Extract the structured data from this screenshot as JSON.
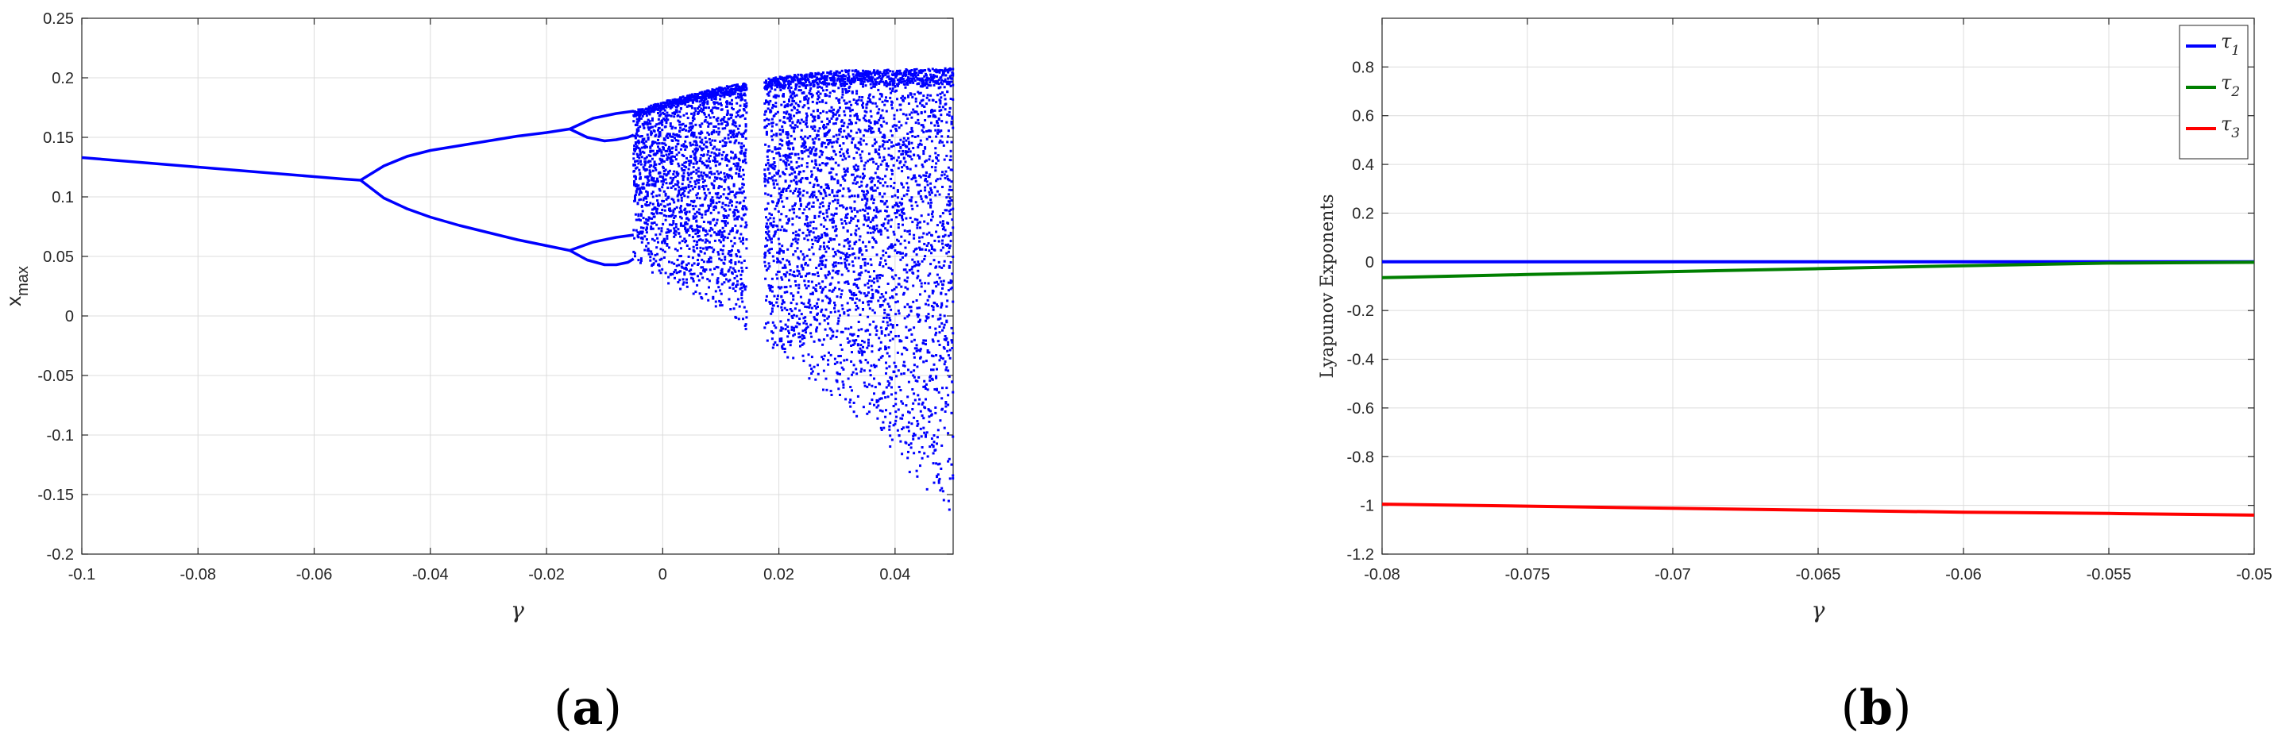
{
  "panels": [
    {
      "label_open": "(",
      "label_letter": "a",
      "label_close": ")"
    },
    {
      "label_open": "(",
      "label_letter": "b",
      "label_close": ")"
    }
  ],
  "chart_data": [
    {
      "type": "scatter",
      "xlabel": "γ",
      "ylabel_main": "x",
      "ylabel_sub": "max",
      "xlim": [
        -0.1,
        0.05
      ],
      "ylim": [
        -0.2,
        0.25
      ],
      "xticks": [
        -0.1,
        -0.08,
        -0.06,
        -0.04,
        -0.02,
        0,
        0.02,
        0.04
      ],
      "yticks": [
        -0.2,
        -0.15,
        -0.1,
        -0.05,
        0,
        0.05,
        0.1,
        0.15,
        0.2,
        0.25
      ],
      "xtick_labels": [
        "-0.1",
        "-0.08",
        "-0.06",
        "-0.04",
        "-0.02",
        "0",
        "0.02",
        "0.04"
      ],
      "ytick_labels": [
        "-0.2",
        "-0.15",
        "-0.1",
        "-0.05",
        "0",
        "0.05",
        "0.1",
        "0.15",
        "0.2",
        "0.25"
      ],
      "grid": true,
      "color": "#0000ff",
      "series": [
        {
          "x": [
            -0.1,
            -0.09,
            -0.08,
            -0.07,
            -0.06,
            -0.055,
            -0.052
          ],
          "values": [
            0.133,
            0.129,
            0.125,
            0.121,
            0.117,
            0.115,
            0.114
          ]
        },
        {
          "x": [
            -0.052,
            -0.048,
            -0.044,
            -0.04,
            -0.035,
            -0.03,
            -0.025,
            -0.02,
            -0.016
          ],
          "values": [
            0.114,
            0.126,
            0.134,
            0.139,
            0.143,
            0.147,
            0.151,
            0.154,
            0.157
          ]
        },
        {
          "x": [
            -0.052,
            -0.048,
            -0.044,
            -0.04,
            -0.035,
            -0.03,
            -0.025,
            -0.02,
            -0.016
          ],
          "values": [
            0.114,
            0.099,
            0.09,
            0.083,
            0.076,
            0.07,
            0.064,
            0.059,
            0.055
          ]
        },
        {
          "x": [
            -0.016,
            -0.012,
            -0.008,
            -0.005
          ],
          "values": [
            0.157,
            0.166,
            0.17,
            0.172
          ]
        },
        {
          "x": [
            -0.016,
            -0.013,
            -0.01,
            -0.008,
            -0.006,
            -0.005
          ],
          "values": [
            0.157,
            0.15,
            0.147,
            0.148,
            0.15,
            0.152
          ]
        },
        {
          "x": [
            -0.016,
            -0.012,
            -0.008,
            -0.005
          ],
          "values": [
            0.055,
            0.062,
            0.066,
            0.068
          ]
        },
        {
          "x": [
            -0.016,
            -0.013,
            -0.01,
            -0.008,
            -0.006,
            -0.005
          ],
          "values": [
            0.055,
            0.047,
            0.043,
            0.043,
            0.045,
            0.048
          ]
        }
      ],
      "chaos_band": {
        "x": [
          -0.005,
          0.0,
          0.01,
          0.02,
          0.03,
          0.04,
          0.05
        ],
        "upper": [
          0.172,
          0.18,
          0.192,
          0.201,
          0.206,
          0.207,
          0.208
        ],
        "lower": [
          0.048,
          0.03,
          0.002,
          -0.03,
          -0.075,
          -0.12,
          -0.168
        ]
      },
      "periodic_window": {
        "x_range": [
          0.0145,
          0.0175
        ]
      }
    },
    {
      "type": "line",
      "xlabel": "γ",
      "ylabel": "Lyapunov Exponents",
      "xlim": [
        -0.08,
        -0.05
      ],
      "ylim": [
        -1.2,
        1.0
      ],
      "xticks": [
        -0.08,
        -0.075,
        -0.07,
        -0.065,
        -0.06,
        -0.055,
        -0.05
      ],
      "yticks": [
        -1.2,
        -1,
        -0.8,
        -0.6,
        -0.4,
        -0.2,
        0,
        0.2,
        0.4,
        0.6,
        0.8
      ],
      "xtick_labels": [
        "-0.08",
        "-0.075",
        "-0.07",
        "-0.065",
        "-0.06",
        "-0.055",
        "-0.05"
      ],
      "ytick_labels": [
        "-1.2",
        "-1",
        "-0.8",
        "-0.6",
        "-0.4",
        "-0.2",
        "0",
        "0.2",
        "0.4",
        "0.6",
        "0.8"
      ],
      "grid": true,
      "legend_position": "top-right",
      "x": [
        -0.08,
        -0.075,
        -0.07,
        -0.065,
        -0.06,
        -0.055,
        -0.05
      ],
      "series": [
        {
          "name": "τ",
          "name_sub": "1",
          "color": "#0000ff",
          "values": [
            0.0,
            0.0,
            0.0,
            0.0,
            0.0,
            0.0,
            0.0
          ]
        },
        {
          "name": "τ",
          "name_sub": "2",
          "color": "#007f00",
          "values": [
            -0.065,
            -0.052,
            -0.04,
            -0.028,
            -0.016,
            -0.005,
            -0.002
          ]
        },
        {
          "name": "τ",
          "name_sub": "3",
          "color": "#ff0000",
          "values": [
            -0.995,
            -1.003,
            -1.012,
            -1.02,
            -1.028,
            -1.033,
            -1.04
          ]
        }
      ]
    }
  ]
}
